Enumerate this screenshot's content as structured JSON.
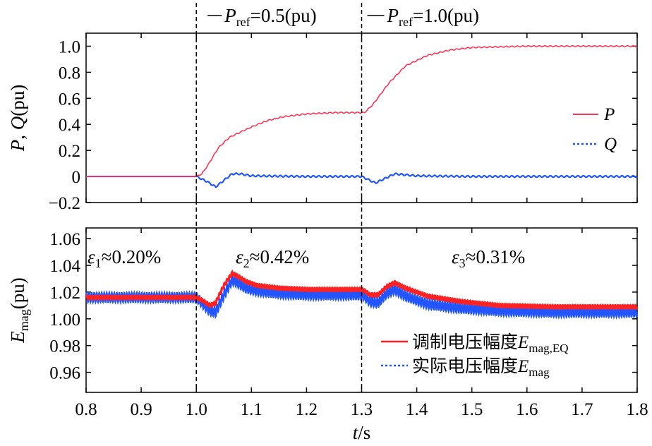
{
  "chart_data": [
    {
      "type": "line",
      "panel": "top",
      "ylabel_parts": {
        "p": "P",
        "sep": ", ",
        "q": "Q",
        "unit": "(pu)"
      },
      "xlim": [
        0.8,
        1.8
      ],
      "ylim": [
        -0.2,
        1.1
      ],
      "yticks": [
        -0.2,
        0.0,
        0.2,
        0.4,
        0.6,
        0.8,
        1.0
      ],
      "ytick_labels": [
        "−0.2",
        "0",
        "0.2",
        "0.4",
        "0.6",
        "0.8",
        "1.0"
      ],
      "annotations": [
        {
          "name": "pref1",
          "var": "P",
          "sub": "ref",
          "rest": "=0.5(pu)",
          "x_data": 1.0
        },
        {
          "name": "pref2",
          "var": "P",
          "sub": "ref",
          "rest": "=1.0(pu)",
          "x_data": 1.3
        }
      ],
      "legend": {
        "position": "right",
        "entries": [
          {
            "name": "P",
            "color": "#ff3355",
            "style": "solid"
          },
          {
            "name": "Q",
            "color": "#2255ff",
            "style": "dotted"
          }
        ]
      },
      "series": [
        {
          "name": "P",
          "color": "#ff3355",
          "x": [
            0.8,
            1.0,
            1.01,
            1.02,
            1.04,
            1.06,
            1.08,
            1.1,
            1.13,
            1.16,
            1.2,
            1.25,
            1.3,
            1.305,
            1.32,
            1.35,
            1.38,
            1.42,
            1.46,
            1.5,
            1.55,
            1.6,
            1.7,
            1.8
          ],
          "y": [
            0.0,
            0.0,
            0.02,
            0.08,
            0.22,
            0.3,
            0.34,
            0.38,
            0.43,
            0.46,
            0.48,
            0.49,
            0.49,
            0.49,
            0.55,
            0.72,
            0.85,
            0.93,
            0.97,
            0.99,
            0.995,
            1.0,
            1.0,
            1.0
          ]
        },
        {
          "name": "Q",
          "color": "#2255ff",
          "x": [
            0.8,
            1.0,
            1.02,
            1.035,
            1.05,
            1.065,
            1.08,
            1.1,
            1.2,
            1.3,
            1.31,
            1.325,
            1.34,
            1.36,
            1.4,
            1.5,
            1.6,
            1.8
          ],
          "y": [
            0.0,
            0.0,
            -0.04,
            -0.08,
            -0.03,
            0.02,
            0.02,
            0.005,
            0.0,
            0.0,
            -0.02,
            -0.05,
            -0.02,
            0.02,
            0.005,
            0.0,
            0.0,
            0.0
          ]
        }
      ]
    },
    {
      "type": "line",
      "panel": "bottom",
      "ylabel_parts": {
        "e": "E",
        "sub": "mag",
        "unit": "(pu)"
      },
      "xlabel_parts": {
        "t": "t",
        "unit": "/s"
      },
      "xlim": [
        0.8,
        1.8
      ],
      "ylim": [
        0.945,
        1.068
      ],
      "xticks": [
        0.8,
        0.9,
        1.0,
        1.1,
        1.2,
        1.3,
        1.4,
        1.5,
        1.6,
        1.7,
        1.8
      ],
      "xtick_labels": [
        "0.8",
        "0.9",
        "1.0",
        "1.1",
        "1.2",
        "1.3",
        "1.4",
        "1.5",
        "1.6",
        "1.7",
        "1.8"
      ],
      "yticks": [
        0.96,
        0.98,
        1.0,
        1.02,
        1.04,
        1.06
      ],
      "ytick_labels": [
        "0.96",
        "0.98",
        "1.00",
        "1.02",
        "1.04",
        "1.06"
      ],
      "vlines": [
        1.0,
        1.3
      ],
      "annotations": [
        {
          "name": "eps1",
          "var": "ε",
          "sub": "1",
          "rest": "≈0.20%"
        },
        {
          "name": "eps2",
          "var": "ε",
          "sub": "2",
          "rest": "≈0.42%"
        },
        {
          "name": "eps3",
          "var": "ε",
          "sub": "3",
          "rest": "≈0.31%"
        }
      ],
      "legend": {
        "position": "bottom-right",
        "entries": [
          {
            "label": "调制电压幅度",
            "var": "E",
            "sub": "mag,EQ",
            "color": "#ff2222",
            "style": "solid"
          },
          {
            "label": "实际电压幅度",
            "var": "E",
            "sub": "mag",
            "color": "#2255ff",
            "style": "dotted"
          }
        ]
      },
      "series": [
        {
          "name": "E_mag,EQ",
          "color": "#ff2222",
          "x": [
            0.8,
            1.0,
            1.01,
            1.025,
            1.035,
            1.05,
            1.065,
            1.075,
            1.09,
            1.11,
            1.15,
            1.2,
            1.3,
            1.305,
            1.315,
            1.33,
            1.345,
            1.36,
            1.38,
            1.42,
            1.48,
            1.55,
            1.65,
            1.8
          ],
          "y": [
            1.016,
            1.016,
            1.014,
            1.01,
            1.012,
            1.025,
            1.034,
            1.032,
            1.028,
            1.025,
            1.023,
            1.022,
            1.022,
            1.021,
            1.018,
            1.018,
            1.024,
            1.027,
            1.023,
            1.017,
            1.013,
            1.01,
            1.009,
            1.009
          ]
        },
        {
          "name": "E_mag",
          "color": "#2255ff",
          "x": [
            0.8,
            1.0,
            1.01,
            1.025,
            1.035,
            1.05,
            1.065,
            1.075,
            1.09,
            1.11,
            1.15,
            1.2,
            1.3,
            1.305,
            1.315,
            1.33,
            1.345,
            1.36,
            1.38,
            1.42,
            1.48,
            1.55,
            1.65,
            1.8
          ],
          "y": [
            1.016,
            1.016,
            1.012,
            1.006,
            1.005,
            1.018,
            1.029,
            1.027,
            1.023,
            1.021,
            1.019,
            1.018,
            1.018,
            1.017,
            1.013,
            1.012,
            1.019,
            1.022,
            1.017,
            1.011,
            1.008,
            1.006,
            1.005,
            1.005
          ]
        }
      ]
    }
  ]
}
